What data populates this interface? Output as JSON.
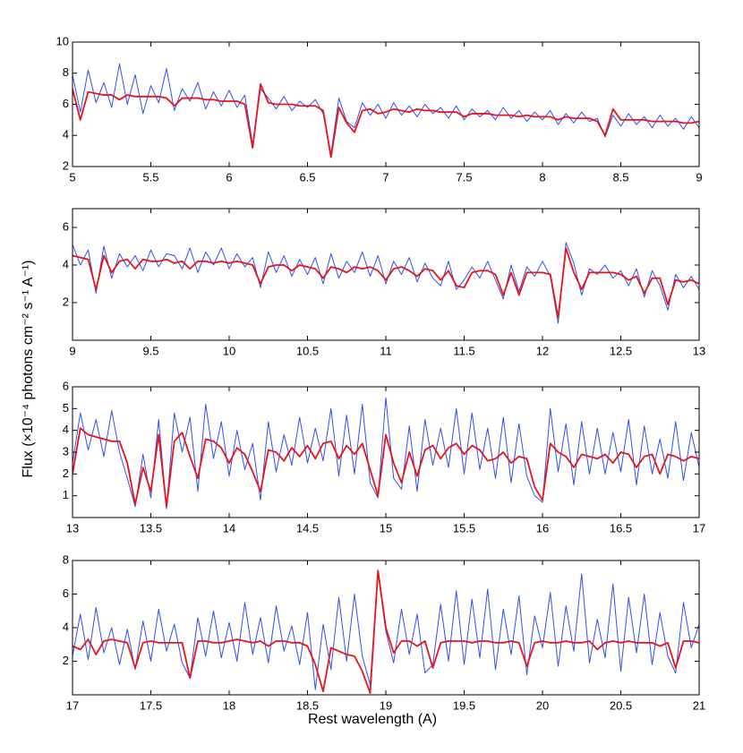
{
  "xlabel": "Rest wavelength (A)",
  "ylabel": "Flux (×10⁻⁴ photons cm⁻² s⁻¹ A⁻¹)",
  "chart_data": [
    {
      "type": "line",
      "x": [
        5.0,
        5.05,
        5.1,
        5.15,
        5.2,
        5.25,
        5.3,
        5.35,
        5.4,
        5.45,
        5.5,
        5.55,
        5.6,
        5.65,
        5.7,
        5.75,
        5.8,
        5.85,
        5.9,
        5.95,
        6.0,
        6.05,
        6.1,
        6.15,
        6.2,
        6.25,
        6.3,
        6.35,
        6.4,
        6.45,
        6.5,
        6.55,
        6.6,
        6.65,
        6.7,
        6.75,
        6.8,
        6.85,
        6.9,
        6.95,
        7.0,
        7.05,
        7.1,
        7.15,
        7.2,
        7.25,
        7.3,
        7.35,
        7.4,
        7.45,
        7.5,
        7.55,
        7.6,
        7.65,
        7.7,
        7.75,
        7.8,
        7.85,
        7.9,
        7.95,
        8.0,
        8.05,
        8.1,
        8.15,
        8.2,
        8.25,
        8.3,
        8.35,
        8.4,
        8.45,
        8.5,
        8.55,
        8.6,
        8.65,
        8.7,
        8.75,
        8.8,
        8.85,
        8.9,
        8.95,
        9.0
      ],
      "series": [
        {
          "color": "#3050f0",
          "values": [
            7.9,
            5.5,
            8.2,
            6.1,
            7.4,
            5.8,
            8.6,
            6.0,
            7.9,
            5.4,
            7.2,
            6.1,
            8.3,
            5.6,
            7.0,
            6.2,
            7.4,
            5.7,
            6.8,
            5.9,
            6.9,
            5.8,
            6.6,
            3.4,
            7.0,
            6.4,
            5.7,
            6.5,
            5.6,
            6.2,
            5.8,
            6.3,
            5.4,
            2.8,
            6.4,
            4.9,
            4.5,
            6.1,
            5.3,
            6.0,
            5.1,
            6.1,
            5.3,
            5.9,
            5.2,
            6.0,
            5.4,
            5.8,
            5.1,
            5.9,
            5.0,
            5.7,
            5.2,
            5.6,
            5.0,
            5.8,
            5.1,
            5.6,
            4.9,
            5.5,
            5.0,
            5.6,
            4.7,
            5.4,
            4.8,
            5.5,
            4.9,
            5.1,
            3.9,
            5.3,
            4.6,
            5.4,
            4.7,
            5.2,
            4.5,
            5.3,
            4.6,
            5.1,
            4.4,
            5.2,
            4.5
          ]
        },
        {
          "color": "#e8141c",
          "values": [
            7.0,
            5.0,
            6.8,
            6.7,
            6.6,
            6.6,
            6.3,
            6.6,
            6.5,
            6.5,
            6.5,
            6.5,
            6.4,
            5.9,
            6.4,
            6.4,
            6.4,
            6.3,
            6.3,
            6.2,
            6.2,
            6.2,
            6.0,
            3.2,
            7.3,
            6.1,
            6.0,
            6.0,
            6.0,
            5.9,
            5.9,
            5.9,
            5.6,
            2.6,
            5.8,
            4.8,
            4.2,
            5.6,
            5.7,
            5.4,
            5.5,
            5.7,
            5.6,
            5.5,
            5.7,
            5.6,
            5.6,
            5.5,
            5.5,
            5.5,
            5.2,
            5.4,
            5.4,
            5.4,
            5.3,
            5.3,
            5.3,
            5.2,
            5.3,
            5.2,
            5.2,
            5.2,
            5.0,
            5.2,
            5.1,
            5.1,
            5.1,
            4.9,
            4.0,
            5.7,
            5.0,
            5.0,
            5.0,
            5.0,
            4.9,
            4.9,
            4.9,
            4.9,
            4.8,
            4.8,
            4.9
          ]
        }
      ],
      "xlim": [
        5,
        9
      ],
      "xticks": [
        5,
        5.5,
        6,
        6.5,
        7,
        7.5,
        8,
        8.5,
        9
      ],
      "ylim": [
        2,
        10
      ],
      "yticks": [
        2,
        4,
        6,
        8,
        10
      ]
    },
    {
      "type": "line",
      "x": [
        9.0,
        9.05,
        9.1,
        9.15,
        9.2,
        9.25,
        9.3,
        9.35,
        9.4,
        9.45,
        9.5,
        9.55,
        9.6,
        9.65,
        9.7,
        9.75,
        9.8,
        9.85,
        9.9,
        9.95,
        10.0,
        10.05,
        10.1,
        10.15,
        10.2,
        10.25,
        10.3,
        10.35,
        10.4,
        10.45,
        10.5,
        10.55,
        10.6,
        10.65,
        10.7,
        10.75,
        10.8,
        10.85,
        10.9,
        10.95,
        11.0,
        11.05,
        11.1,
        11.15,
        11.2,
        11.25,
        11.3,
        11.35,
        11.4,
        11.45,
        11.5,
        11.55,
        11.6,
        11.65,
        11.7,
        11.75,
        11.8,
        11.85,
        11.9,
        11.95,
        12.0,
        12.05,
        12.1,
        12.15,
        12.2,
        12.25,
        12.3,
        12.35,
        12.4,
        12.45,
        12.5,
        12.55,
        12.6,
        12.65,
        12.7,
        12.75,
        12.8,
        12.85,
        12.9,
        12.95,
        13.0
      ],
      "series": [
        {
          "color": "#3050f0",
          "values": [
            5.1,
            4.0,
            4.8,
            2.5,
            5.0,
            3.3,
            4.6,
            3.9,
            4.5,
            3.7,
            4.8,
            3.9,
            4.6,
            4.5,
            3.8,
            4.9,
            3.6,
            4.7,
            4.0,
            4.9,
            3.8,
            4.6,
            3.9,
            4.4,
            2.8,
            4.7,
            3.6,
            4.5,
            3.4,
            4.3,
            3.5,
            4.4,
            3.0,
            4.6,
            3.3,
            4.2,
            3.6,
            4.7,
            3.4,
            4.5,
            3.0,
            4.2,
            3.5,
            4.4,
            3.1,
            4.1,
            3.3,
            2.9,
            4.2,
            2.7,
            3.2,
            3.9,
            3.3,
            4.2,
            3.2,
            2.2,
            4.0,
            2.6,
            3.9,
            3.4,
            4.2,
            3.4,
            0.9,
            5.2,
            4.1,
            2.4,
            3.8,
            3.5,
            4.0,
            3.3,
            3.7,
            2.9,
            3.8,
            2.3,
            3.7,
            2.9,
            1.6,
            3.5,
            2.8,
            3.4,
            2.7
          ]
        },
        {
          "color": "#e8141c",
          "values": [
            4.5,
            4.4,
            4.3,
            2.7,
            4.5,
            3.6,
            4.2,
            4.3,
            3.8,
            4.3,
            4.2,
            4.2,
            4.3,
            4.1,
            4.2,
            3.8,
            4.2,
            4.2,
            4.1,
            4.2,
            4.1,
            4.2,
            4.1,
            4.0,
            3.0,
            3.9,
            4.0,
            4.0,
            3.7,
            4.0,
            3.9,
            3.8,
            3.3,
            3.9,
            3.8,
            3.6,
            3.9,
            3.8,
            3.9,
            3.7,
            3.2,
            3.8,
            3.9,
            3.7,
            3.4,
            3.8,
            3.7,
            3.2,
            3.7,
            2.9,
            2.8,
            3.6,
            3.7,
            3.7,
            3.5,
            2.4,
            3.6,
            2.4,
            3.6,
            3.6,
            3.6,
            3.5,
            1.2,
            4.9,
            3.6,
            2.7,
            3.6,
            3.6,
            3.6,
            3.6,
            3.5,
            3.2,
            3.4,
            2.5,
            3.3,
            3.3,
            1.9,
            3.2,
            3.1,
            3.2,
            3.0
          ]
        }
      ],
      "xlim": [
        9,
        13
      ],
      "xticks": [
        9,
        9.5,
        10,
        10.5,
        11,
        11.5,
        12,
        12.5,
        13
      ],
      "ylim": [
        0,
        7
      ],
      "yticks": [
        2,
        4,
        6
      ]
    },
    {
      "type": "line",
      "x": [
        13.0,
        13.05,
        13.1,
        13.15,
        13.2,
        13.25,
        13.3,
        13.35,
        13.4,
        13.45,
        13.5,
        13.55,
        13.6,
        13.65,
        13.7,
        13.75,
        13.8,
        13.85,
        13.9,
        13.95,
        14.0,
        14.05,
        14.1,
        14.15,
        14.2,
        14.25,
        14.3,
        14.35,
        14.4,
        14.45,
        14.5,
        14.55,
        14.6,
        14.65,
        14.7,
        14.75,
        14.8,
        14.85,
        14.9,
        14.95,
        15.0,
        15.05,
        15.1,
        15.15,
        15.2,
        15.25,
        15.3,
        15.35,
        15.4,
        15.45,
        15.5,
        15.55,
        15.6,
        15.65,
        15.7,
        15.75,
        15.8,
        15.85,
        15.9,
        15.95,
        16.0,
        16.05,
        16.1,
        16.15,
        16.2,
        16.25,
        16.3,
        16.35,
        16.4,
        16.45,
        16.5,
        16.55,
        16.6,
        16.65,
        16.7,
        16.75,
        16.8,
        16.85,
        16.9,
        16.95,
        17.0
      ],
      "series": [
        {
          "color": "#3050f0",
          "values": [
            2.5,
            4.8,
            3.1,
            4.5,
            2.8,
            4.9,
            3.0,
            1.8,
            0.5,
            2.9,
            0.9,
            4.5,
            0.4,
            4.8,
            3.0,
            4.6,
            1.2,
            5.2,
            2.7,
            4.4,
            1.9,
            4.0,
            2.2,
            3.4,
            0.8,
            4.4,
            2.1,
            3.8,
            2.4,
            4.6,
            2.5,
            4.1,
            2.6,
            5.0,
            1.9,
            4.7,
            2.0,
            5.2,
            1.6,
            0.9,
            5.5,
            1.8,
            1.3,
            4.2,
            1.2,
            4.5,
            2.4,
            4.1,
            2.3,
            5.0,
            2.0,
            4.8,
            2.2,
            4.1,
            1.8,
            4.6,
            1.6,
            4.3,
            1.9,
            1.0,
            0.7,
            5.0,
            2.1,
            4.3,
            1.5,
            4.4,
            2.0,
            4.1,
            2.0,
            3.9,
            2.1,
            4.5,
            1.5,
            4.2,
            2.0,
            3.6,
            1.8,
            4.4,
            1.7,
            3.9,
            2.3
          ]
        },
        {
          "color": "#e8141c",
          "values": [
            2.0,
            4.1,
            3.8,
            3.7,
            3.6,
            3.5,
            3.5,
            2.5,
            0.6,
            2.3,
            1.2,
            3.8,
            0.5,
            3.5,
            3.9,
            2.8,
            1.8,
            3.6,
            3.5,
            3.2,
            2.5,
            3.2,
            2.9,
            2.1,
            1.2,
            3.1,
            3.0,
            2.6,
            3.2,
            2.8,
            3.3,
            2.7,
            3.4,
            3.5,
            2.7,
            3.3,
            2.9,
            3.4,
            2.2,
            1.0,
            3.8,
            2.5,
            1.6,
            3.0,
            1.9,
            3.1,
            3.3,
            2.7,
            3.2,
            3.4,
            2.9,
            3.3,
            3.1,
            2.6,
            2.7,
            3.0,
            2.5,
            2.8,
            2.7,
            1.4,
            0.8,
            3.4,
            3.0,
            2.8,
            2.3,
            2.9,
            2.8,
            2.7,
            2.9,
            2.5,
            3.0,
            2.9,
            2.3,
            2.8,
            2.9,
            2.0,
            2.9,
            2.8,
            2.6,
            2.8,
            2.7
          ]
        }
      ],
      "xlim": [
        13,
        17
      ],
      "xticks": [
        13,
        13.5,
        14,
        14.5,
        15,
        15.5,
        16,
        16.5,
        17
      ],
      "ylim": [
        0,
        6
      ],
      "yticks": [
        1,
        2,
        3,
        4,
        5,
        6
      ]
    },
    {
      "type": "line",
      "x": [
        17.0,
        17.05,
        17.1,
        17.15,
        17.2,
        17.25,
        17.3,
        17.35,
        17.4,
        17.45,
        17.5,
        17.55,
        17.6,
        17.65,
        17.7,
        17.75,
        17.8,
        17.85,
        17.9,
        17.95,
        18.0,
        18.05,
        18.1,
        18.15,
        18.2,
        18.25,
        18.3,
        18.35,
        18.4,
        18.45,
        18.5,
        18.55,
        18.6,
        18.65,
        18.7,
        18.75,
        18.8,
        18.85,
        18.9,
        18.95,
        19.0,
        19.05,
        19.1,
        19.15,
        19.2,
        19.25,
        19.3,
        19.35,
        19.4,
        19.45,
        19.5,
        19.55,
        19.6,
        19.65,
        19.7,
        19.75,
        19.8,
        19.85,
        19.9,
        19.95,
        20.0,
        20.05,
        20.1,
        20.15,
        20.2,
        20.25,
        20.3,
        20.35,
        20.4,
        20.45,
        20.5,
        20.55,
        20.6,
        20.65,
        20.7,
        20.75,
        20.8,
        20.85,
        20.9,
        20.95,
        21.0
      ],
      "series": [
        {
          "color": "#3050f0",
          "values": [
            2.3,
            4.8,
            2.1,
            5.2,
            2.5,
            4.0,
            1.8,
            3.9,
            1.5,
            4.4,
            2.0,
            5.1,
            2.6,
            4.2,
            1.9,
            1.0,
            4.6,
            2.3,
            5.0,
            2.2,
            4.3,
            2.0,
            5.5,
            2.4,
            4.6,
            1.9,
            5.3,
            2.6,
            4.1,
            1.8,
            4.9,
            0.3,
            4.2,
            1.5,
            5.8,
            2.0,
            6.0,
            2.3,
            0.6,
            7.3,
            3.8,
            1.9,
            5.1,
            2.4,
            4.8,
            1.3,
            1.8,
            5.4,
            2.0,
            6.2,
            1.8,
            5.7,
            2.2,
            6.3,
            1.5,
            5.1,
            2.4,
            5.9,
            1.2,
            4.7,
            2.8,
            6.1,
            1.7,
            5.3,
            2.6,
            7.2,
            1.9,
            4.5,
            2.2,
            6.6,
            1.4,
            5.8,
            2.5,
            6.0,
            1.8,
            4.9,
            2.3,
            1.3,
            5.5,
            2.8,
            4.2
          ]
        },
        {
          "color": "#e8141c",
          "values": [
            2.9,
            2.7,
            3.3,
            2.4,
            3.2,
            3.3,
            3.2,
            3.1,
            1.6,
            3.1,
            3.2,
            3.1,
            3.1,
            3.1,
            3.1,
            1.0,
            3.2,
            3.2,
            3.1,
            3.1,
            3.2,
            3.3,
            3.2,
            3.1,
            3.2,
            2.9,
            3.2,
            3.2,
            3.1,
            3.1,
            2.9,
            1.8,
            0.2,
            2.8,
            2.6,
            2.4,
            2.3,
            1.4,
            0.1,
            7.4,
            4.0,
            2.5,
            3.2,
            3.2,
            2.9,
            3.2,
            1.6,
            3.1,
            3.2,
            3.2,
            3.2,
            3.1,
            3.2,
            3.2,
            3.1,
            3.1,
            3.2,
            3.1,
            1.7,
            3.1,
            3.2,
            3.1,
            3.1,
            3.2,
            3.1,
            3.1,
            3.2,
            2.7,
            3.1,
            3.2,
            3.1,
            3.2,
            3.1,
            3.1,
            3.1,
            2.9,
            3.1,
            1.6,
            3.2,
            3.2,
            3.1
          ]
        }
      ],
      "xlim": [
        17,
        21
      ],
      "xticks": [
        17,
        17.5,
        18,
        18.5,
        19,
        19.5,
        20,
        20.5,
        21
      ],
      "ylim": [
        0,
        8
      ],
      "yticks": [
        2,
        4,
        6,
        8
      ]
    }
  ]
}
